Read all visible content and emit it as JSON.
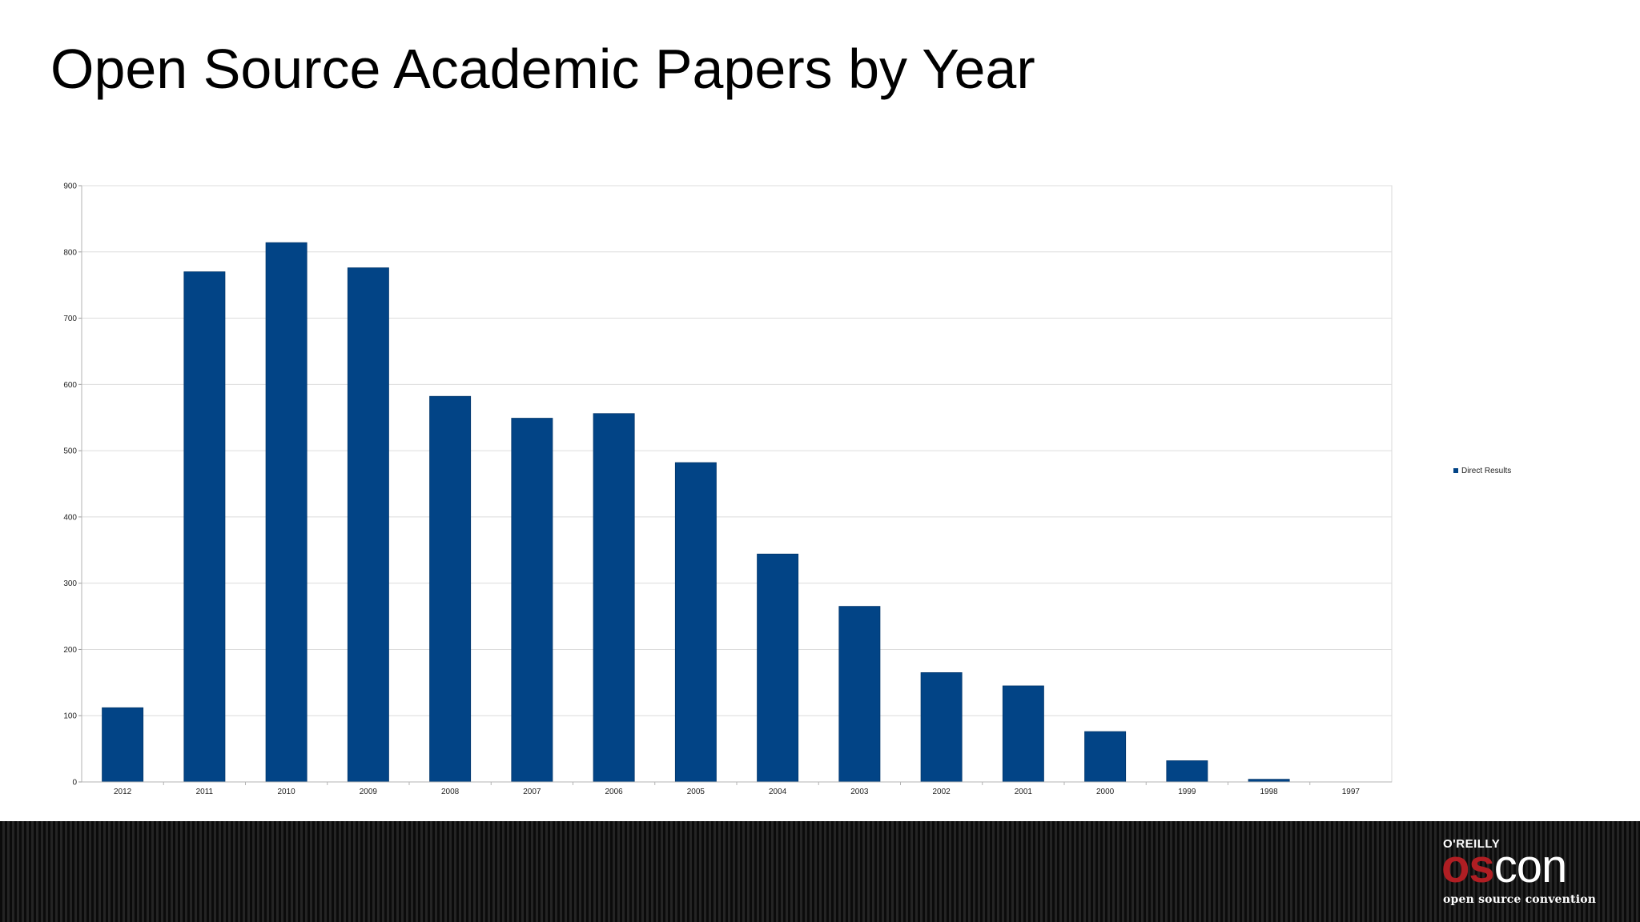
{
  "slide": {
    "title": "Open Source Academic Papers by Year"
  },
  "chart_data": {
    "type": "bar",
    "title": "",
    "xlabel": "",
    "ylabel": "",
    "categories": [
      "2012",
      "2011",
      "2010",
      "2009",
      "2008",
      "2007",
      "2006",
      "2005",
      "2004",
      "2003",
      "2002",
      "2001",
      "2000",
      "1999",
      "1998",
      "1997"
    ],
    "series": [
      {
        "name": "Direct Results",
        "values": [
          112,
          770,
          814,
          776,
          582,
          549,
          556,
          482,
          344,
          265,
          165,
          145,
          76,
          32,
          4,
          0
        ],
        "color": "#024486"
      }
    ],
    "ylim": [
      0,
      900
    ],
    "yticks": [
      0,
      100,
      200,
      300,
      400,
      500,
      600,
      700,
      800,
      900
    ],
    "grid": true,
    "legend_position": "right"
  },
  "footer": {
    "publisher": "O'REILLY",
    "logo_os": "os",
    "logo_con": "con",
    "tagline": "open source convention"
  }
}
